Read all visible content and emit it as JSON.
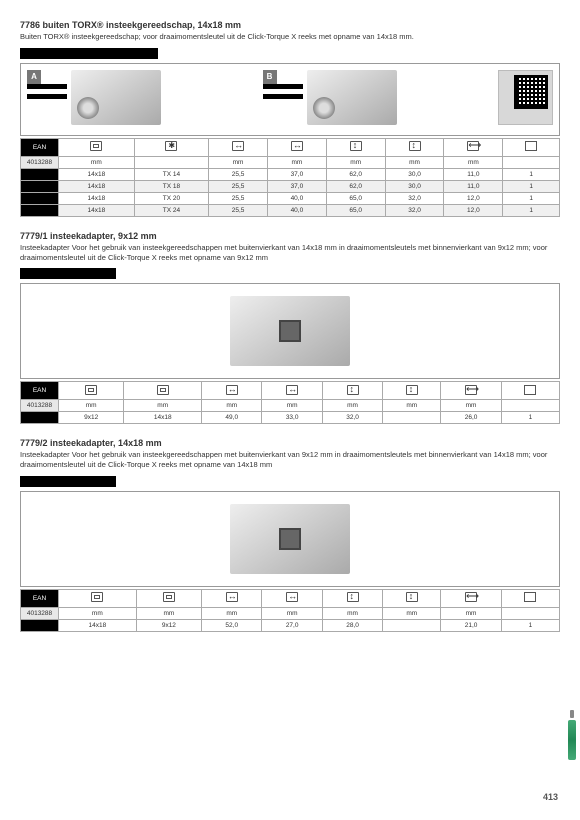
{
  "page_number": "413",
  "sections": [
    {
      "id": "s1",
      "title": "7786 buiten TORX® insteekgereedschap, 14x18 mm",
      "desc": "Buiten TORX® insteekgereedschap; voor draaimomentsleutel uit de Click-Torque X reeks met opname van 14x18 mm.",
      "variants": [
        {
          "badge": "A"
        },
        {
          "badge": "B"
        }
      ],
      "has_qr": true,
      "table": {
        "ean_prefix": "4013288",
        "headers_icons": [
          "sq",
          "star",
          "dimw",
          "dimw",
          "dimh",
          "dimh",
          "len",
          "pkg"
        ],
        "units": [
          "mm",
          "",
          "mm",
          "mm",
          "mm",
          "mm",
          "mm",
          ""
        ],
        "rows": [
          [
            "",
            "14x18",
            "TX 14",
            "25,5",
            "37,0",
            "62,0",
            "30,0",
            "11,0",
            "1"
          ],
          [
            "",
            "14x18",
            "TX 18",
            "25,5",
            "37,0",
            "62,0",
            "30,0",
            "11,0",
            "1"
          ],
          [
            "",
            "14x18",
            "TX 20",
            "25,5",
            "40,0",
            "65,0",
            "32,0",
            "12,0",
            "1"
          ],
          [
            "",
            "14x18",
            "TX 24",
            "25,5",
            "40,0",
            "65,0",
            "32,0",
            "12,0",
            "1"
          ]
        ]
      }
    },
    {
      "id": "s2",
      "title": "7779/1 insteekadapter, 9x12 mm",
      "desc": "Insteekadapter Voor het gebruik van insteekgereedschappen met buitenvierkant van 14x18 mm in draaimomentsleutels met binnenvierkant van 9x12 mm;  voor draaimomentsleutel uit de Click-Torque X reeks met opname van 9x12 mm",
      "center_image": true,
      "table": {
        "ean_prefix": "4013288",
        "headers_icons": [
          "sq",
          "sq",
          "dimw",
          "dimw",
          "dimh",
          "dimh",
          "len",
          "pkg"
        ],
        "units": [
          "mm",
          "mm",
          "mm",
          "mm",
          "mm",
          "mm",
          "mm",
          ""
        ],
        "rows": [
          [
            "",
            "9x12",
            "14x18",
            "49,0",
            "33,0",
            "32,0",
            "",
            "26,0",
            "1"
          ]
        ]
      }
    },
    {
      "id": "s3",
      "title": "7779/2 insteekadapter, 14x18 mm",
      "desc": "Insteekadapter Voor het gebruik van insteekgereedschappen met buitenvierkant van 9x12 mm in draaimomentsleutels met binnenvierkant van 14x18 mm;  voor draaimomentsleutel uit de Click-Torque X reeks met opname van 14x18 mm",
      "center_image": true,
      "table": {
        "ean_prefix": "4013288",
        "headers_icons": [
          "sq",
          "sq",
          "dimw",
          "dimw",
          "dimh",
          "dimh",
          "len",
          "pkg"
        ],
        "units": [
          "mm",
          "mm",
          "mm",
          "mm",
          "mm",
          "mm",
          "mm",
          ""
        ],
        "rows": [
          [
            "",
            "14x18",
            "9x12",
            "52,0",
            "27,0",
            "28,0",
            "",
            "21,0",
            "1"
          ]
        ]
      }
    }
  ],
  "ean_header": "EAN"
}
